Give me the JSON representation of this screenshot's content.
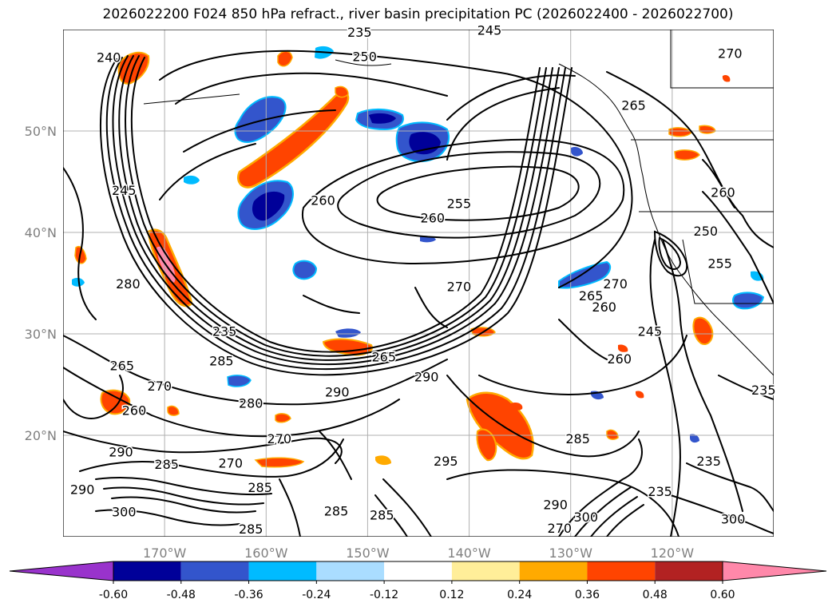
{
  "title": "2026022200 F024 850 hPa refract., river basin precipitation PC (2026022400 - 2026022700)",
  "lat_labels": [
    {
      "lat": 50,
      "text": "50°N"
    },
    {
      "lat": 40,
      "text": "40°N"
    },
    {
      "lat": 30,
      "text": "30°N"
    },
    {
      "lat": 20,
      "text": "20°N"
    }
  ],
  "lon_labels": [
    {
      "lon": -170,
      "text": "170°W"
    },
    {
      "lon": -160,
      "text": "160°W"
    },
    {
      "lon": -150,
      "text": "150°W"
    },
    {
      "lon": -140,
      "text": "140°W"
    },
    {
      "lon": -130,
      "text": "130°W"
    },
    {
      "lon": -120,
      "text": "120°W"
    }
  ],
  "map_extent": {
    "lon_min": -180,
    "lon_max": -110,
    "lat_min": 10,
    "lat_max": 60
  },
  "colorbar": {
    "tick_labels": [
      "-0.60",
      "-0.48",
      "-0.36",
      "-0.24",
      "-0.12",
      "0.12",
      "0.24",
      "0.36",
      "0.48",
      "0.60"
    ],
    "colors": [
      "#9933cc",
      "#000099",
      "#3355cc",
      "#00bbff",
      "#aaddff",
      "#ffffff",
      "#ffee99",
      "#ffaa00",
      "#ff4400",
      "#b22222",
      "#ff88aa"
    ]
  },
  "contour_labels": [
    {
      "text": "240",
      "lon": -175.5,
      "lat": 56.8
    },
    {
      "text": "250",
      "lon": -150.3,
      "lat": 56.9
    },
    {
      "text": "245",
      "lon": -138.0,
      "lat": 59.5
    },
    {
      "text": "235",
      "lon": -150.8,
      "lat": 59.3
    },
    {
      "text": "270",
      "lon": -114.3,
      "lat": 57.2
    },
    {
      "text": "265",
      "lon": -123.8,
      "lat": 52.1
    },
    {
      "text": "260",
      "lon": -154.4,
      "lat": 42.7
    },
    {
      "text": "255",
      "lon": -141.0,
      "lat": 42.4
    },
    {
      "text": "260",
      "lon": -143.6,
      "lat": 41.0
    },
    {
      "text": "245",
      "lon": -174.0,
      "lat": 43.7
    },
    {
      "text": "270",
      "lon": -141.0,
      "lat": 34.2
    },
    {
      "text": "280",
      "lon": -173.6,
      "lat": 34.5
    },
    {
      "text": "270",
      "lon": -125.6,
      "lat": 34.5
    },
    {
      "text": "265",
      "lon": -128.0,
      "lat": 33.3
    },
    {
      "text": "260",
      "lon": -126.7,
      "lat": 32.2
    },
    {
      "text": "255",
      "lon": -115.3,
      "lat": 36.5
    },
    {
      "text": "250",
      "lon": -116.7,
      "lat": 39.7
    },
    {
      "text": "235",
      "lon": -164.1,
      "lat": 29.8
    },
    {
      "text": "265",
      "lon": -148.4,
      "lat": 27.3
    },
    {
      "text": "260",
      "lon": -125.2,
      "lat": 27.1
    },
    {
      "text": "245",
      "lon": -122.2,
      "lat": 29.8
    },
    {
      "text": "290",
      "lon": -144.2,
      "lat": 25.3
    },
    {
      "text": "290",
      "lon": -153.0,
      "lat": 23.8
    },
    {
      "text": "280",
      "lon": -161.5,
      "lat": 22.7
    },
    {
      "text": "265",
      "lon": -174.2,
      "lat": 26.4
    },
    {
      "text": "285",
      "lon": -164.4,
      "lat": 26.9
    },
    {
      "text": "270",
      "lon": -170.5,
      "lat": 24.4
    },
    {
      "text": "260",
      "lon": -173.0,
      "lat": 22.0
    },
    {
      "text": "270",
      "lon": -158.7,
      "lat": 19.2
    },
    {
      "text": "290",
      "lon": -174.3,
      "lat": 17.9
    },
    {
      "text": "285",
      "lon": -169.8,
      "lat": 16.7
    },
    {
      "text": "270",
      "lon": -163.5,
      "lat": 16.8
    },
    {
      "text": "285",
      "lon": -160.6,
      "lat": 14.4
    },
    {
      "text": "295",
      "lon": -142.3,
      "lat": 17.0
    },
    {
      "text": "285",
      "lon": -129.3,
      "lat": 19.2
    },
    {
      "text": "235",
      "lon": -116.4,
      "lat": 17.0
    },
    {
      "text": "235",
      "lon": -121.2,
      "lat": 14.0
    },
    {
      "text": "290",
      "lon": -178.1,
      "lat": 14.2
    },
    {
      "text": "300",
      "lon": -174.0,
      "lat": 12.0
    },
    {
      "text": "285",
      "lon": -153.1,
      "lat": 12.1
    },
    {
      "text": "285",
      "lon": -148.6,
      "lat": 11.7
    },
    {
      "text": "285",
      "lon": -161.5,
      "lat": 10.3
    },
    {
      "text": "290",
      "lon": -131.5,
      "lat": 12.7
    },
    {
      "text": "300",
      "lon": -128.5,
      "lat": 11.5
    },
    {
      "text": "270",
      "lon": -131.1,
      "lat": 10.4
    },
    {
      "text": "300",
      "lon": -114.0,
      "lat": 11.3
    },
    {
      "text": "260",
      "lon": -115.0,
      "lat": 43.5
    },
    {
      "text": "235",
      "lon": -111.0,
      "lat": 24.0
    }
  ]
}
